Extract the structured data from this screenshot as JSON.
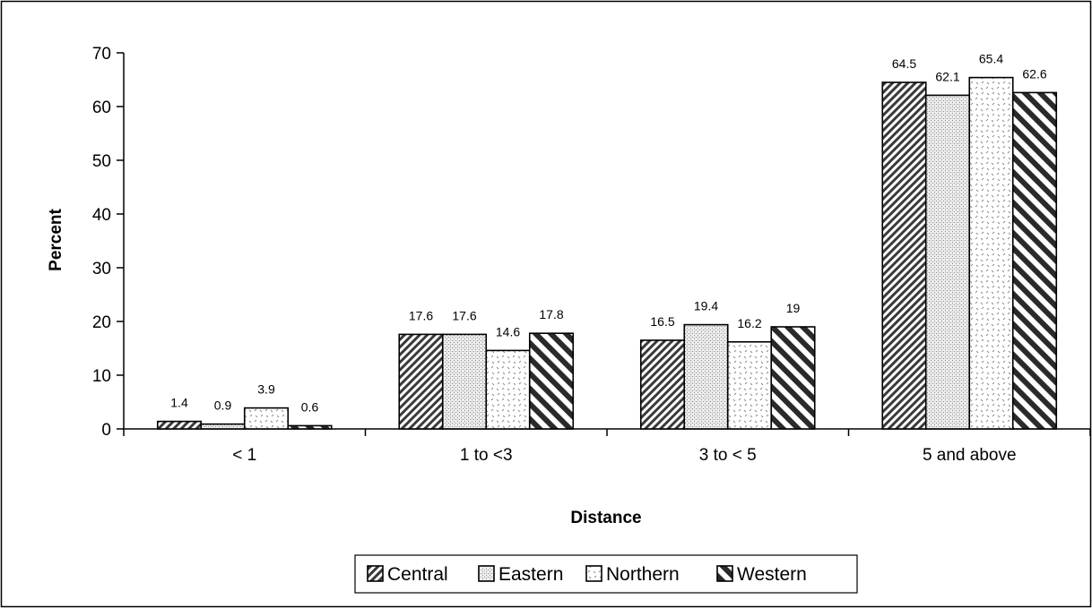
{
  "chart_data": {
    "type": "bar",
    "title": "",
    "xlabel": "Distance",
    "ylabel": "Percent",
    "ylim": [
      0,
      70
    ],
    "yticks": [
      0,
      10,
      20,
      30,
      40,
      50,
      60,
      70
    ],
    "grid": false,
    "legend_position": "bottom",
    "categories": [
      "< 1",
      "1 to <3",
      "3 to < 5",
      "5 and above"
    ],
    "series": [
      {
        "name": "Central",
        "values": [
          1.4,
          17.6,
          16.5,
          64.5
        ],
        "labels": [
          "1.4",
          "17.6",
          "16.5",
          "64.5"
        ],
        "pattern": "dense-diagonal"
      },
      {
        "name": "Eastern",
        "values": [
          0.9,
          17.6,
          19.4,
          62.1
        ],
        "labels": [
          "0.9",
          "17.6",
          "19.4",
          "62.1"
        ],
        "pattern": "fine-crosshatch"
      },
      {
        "name": "Northern",
        "values": [
          3.9,
          14.6,
          16.2,
          65.4
        ],
        "labels": [
          "3.9",
          "14.6",
          "16.2",
          "65.4"
        ],
        "pattern": "sparse-dots"
      },
      {
        "name": "Western",
        "values": [
          0.6,
          17.8,
          19,
          62.6
        ],
        "labels": [
          "0.6",
          "17.8",
          "19",
          "62.6"
        ],
        "pattern": "wide-stripes"
      }
    ]
  }
}
